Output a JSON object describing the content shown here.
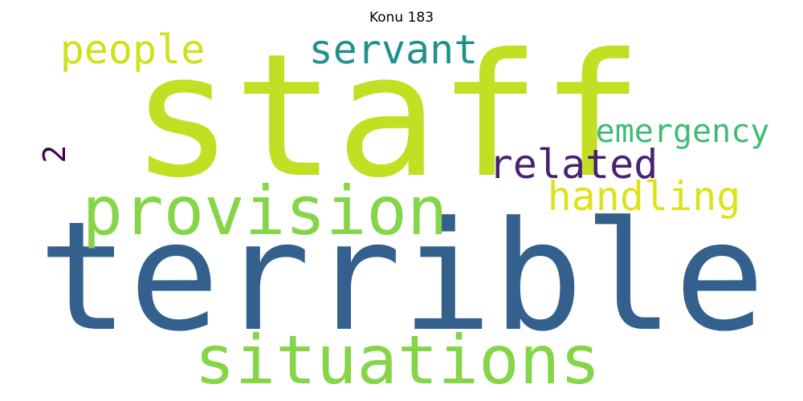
{
  "title": "Konu 183",
  "words": [
    {
      "text": "staff",
      "color": "#c2df23"
    },
    {
      "text": "terrible",
      "color": "#34608d"
    },
    {
      "text": "provision",
      "color": "#86d549"
    },
    {
      "text": "situations",
      "color": "#86d549"
    },
    {
      "text": "servant",
      "color": "#21918c"
    },
    {
      "text": "people",
      "color": "#d0e11c"
    },
    {
      "text": "emergency",
      "color": "#3dbc74"
    },
    {
      "text": "handling",
      "color": "#dde318"
    },
    {
      "text": "related",
      "color": "#482173"
    },
    {
      "text": "2",
      "color": "#440154"
    }
  ]
}
